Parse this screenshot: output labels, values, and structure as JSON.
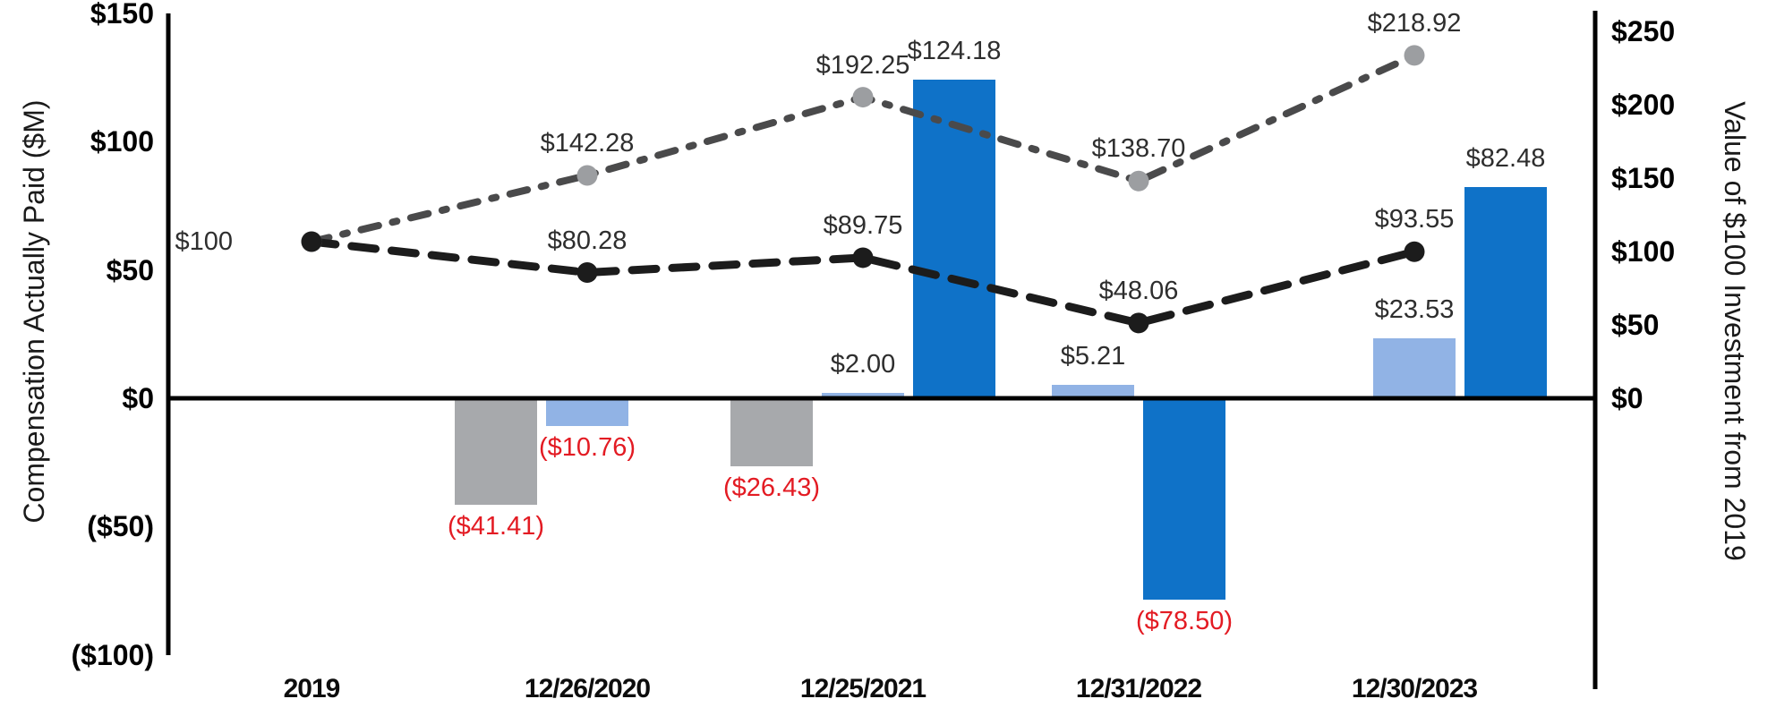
{
  "chart_data": {
    "type": "combo-bar-line",
    "background": "#ffffff",
    "categories": [
      "2019",
      "12/26/2020",
      "12/25/2021",
      "12/31/2022",
      "12/30/2023"
    ],
    "left_axis": {
      "label": "Compensation Actually Paid ($M)",
      "range": [
        -100,
        150
      ],
      "ticks": [
        {
          "text": "$150",
          "value": 150
        },
        {
          "text": "$100",
          "value": 100
        },
        {
          "text": "$50",
          "value": 50
        },
        {
          "text": "$0",
          "value": 0
        },
        {
          "text": "($50)",
          "value": -50
        },
        {
          "text": "($100)",
          "value": -100
        }
      ]
    },
    "right_axis": {
      "label": "Value of $100 Investment from 2019",
      "range": [
        0,
        250
      ],
      "ticks": [
        {
          "text": "$250",
          "value": 250
        },
        {
          "text": "$200",
          "value": 200
        },
        {
          "text": "$150",
          "value": 150
        },
        {
          "text": "$100",
          "value": 100
        },
        {
          "text": "$50",
          "value": 50
        },
        {
          "text": "$0",
          "value": 0
        }
      ]
    },
    "bar_series": [
      {
        "name": "gray-bars",
        "color": "#a7a9ac",
        "values": [
          null,
          -41.41,
          -26.43,
          null,
          null
        ],
        "labels": [
          null,
          "($41.41)",
          "($26.43)",
          null,
          null
        ]
      },
      {
        "name": "light-blue-bars",
        "color": "#91b3e5",
        "values": [
          null,
          -10.76,
          2.0,
          5.21,
          23.53
        ],
        "labels": [
          null,
          "($10.76)",
          "$2.00",
          "$5.21",
          "$23.53"
        ]
      },
      {
        "name": "dark-blue-bars",
        "color": "#0f72c8",
        "values": [
          null,
          null,
          124.18,
          -78.5,
          82.48
        ],
        "labels": [
          null,
          null,
          "$124.18",
          "($78.50)",
          "$82.48"
        ]
      }
    ],
    "line_series": [
      {
        "name": "index-line",
        "style": "dash-dot",
        "color": "#4a4a4b",
        "marker_color": "#9c9ea1",
        "values": [
          100,
          142.28,
          192.25,
          138.7,
          218.92
        ],
        "labels": [
          null,
          "$142.28",
          "$192.25",
          "$138.70",
          "$218.92"
        ]
      },
      {
        "name": "cap-line",
        "style": "dash",
        "color": "#1c1c1c",
        "marker_color": "#1c1c1c",
        "values": [
          100,
          80.28,
          89.75,
          48.06,
          93.55
        ],
        "labels": [
          "$100",
          "$80.28",
          "$89.75",
          "$48.06",
          "$93.55"
        ]
      }
    ],
    "negative_label_color": "#e31b23",
    "positive_label_color": "#2e2e2e",
    "axis_color": "#000000"
  }
}
